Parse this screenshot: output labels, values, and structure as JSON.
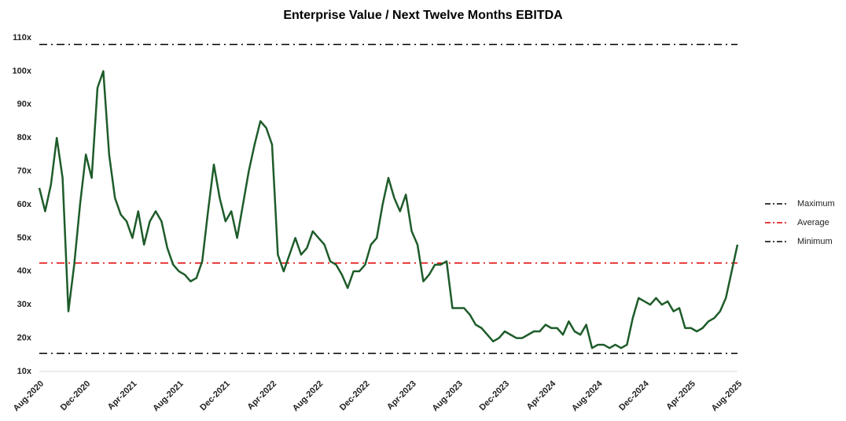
{
  "chart_data": {
    "type": "line",
    "title": "Enterprise Value / Next Twelve Months EBITDA",
    "categories": [
      "Aug-2020",
      null,
      null,
      null,
      null,
      null,
      null,
      null,
      "Dec-2020",
      null,
      null,
      null,
      null,
      null,
      null,
      null,
      "Apr-2021",
      null,
      null,
      null,
      null,
      null,
      null,
      null,
      "Aug-2021",
      null,
      null,
      null,
      null,
      null,
      null,
      null,
      "Dec-2021",
      null,
      null,
      null,
      null,
      null,
      null,
      null,
      "Apr-2022",
      null,
      null,
      null,
      null,
      null,
      null,
      null,
      "Aug-2022",
      null,
      null,
      null,
      null,
      null,
      null,
      null,
      "Dec-2022",
      null,
      null,
      null,
      null,
      null,
      null,
      null,
      "Apr-2023",
      null,
      null,
      null,
      null,
      null,
      null,
      null,
      "Aug-2023",
      null,
      null,
      null,
      null,
      null,
      null,
      null,
      "Dec-2023",
      null,
      null,
      null,
      null,
      null,
      null,
      null,
      "Apr-2024",
      null,
      null,
      null,
      null,
      null,
      null,
      null,
      "Aug-2024",
      null,
      null,
      null,
      null,
      null,
      null,
      null,
      "Dec-2024",
      null,
      null,
      null,
      null,
      null,
      null,
      null,
      "Apr-2025",
      null,
      null,
      null,
      null,
      null,
      null,
      null,
      "Aug-2025"
    ],
    "series": [
      {
        "name": "EV / NTM EBITDA",
        "color": "#1e5c2a",
        "values": [
          65,
          58,
          66,
          80,
          68,
          28,
          42,
          60,
          75,
          68,
          95,
          100,
          75,
          62,
          57,
          55,
          50,
          58,
          48,
          55,
          58,
          55,
          47,
          42,
          40,
          39,
          37,
          38,
          43,
          58,
          72,
          62,
          55,
          58,
          50,
          60,
          70,
          78,
          85,
          83,
          78,
          45,
          40,
          45,
          50,
          45,
          47,
          52,
          50,
          48,
          43,
          42,
          39,
          35,
          40,
          40,
          42,
          48,
          50,
          60,
          68,
          62,
          58,
          63,
          52,
          48,
          37,
          39,
          42,
          42,
          43,
          29,
          29,
          29,
          27,
          24,
          23,
          21,
          19,
          20,
          22,
          21,
          20,
          20,
          21,
          22,
          22,
          24,
          23,
          23,
          21,
          25,
          22,
          21,
          24,
          17,
          18,
          18,
          17,
          18,
          17,
          18,
          26,
          32,
          31,
          30,
          32,
          30,
          31,
          28,
          29,
          23,
          23,
          22,
          23,
          25,
          26,
          28,
          32,
          40,
          48
        ]
      }
    ],
    "reference_lines": [
      {
        "name": "Maximum",
        "value": 108,
        "color": "#000000"
      },
      {
        "name": "Average",
        "value": 42.5,
        "color": "#e00000"
      },
      {
        "name": "Minimum",
        "value": 15.4,
        "color": "#000000"
      }
    ],
    "ylim": [
      10,
      110
    ],
    "yticks": [
      {
        "value": 10,
        "label": "10x"
      },
      {
        "value": 20,
        "label": "20x"
      },
      {
        "value": 30,
        "label": "30x"
      },
      {
        "value": 40,
        "label": "40x"
      },
      {
        "value": 50,
        "label": "50x"
      },
      {
        "value": 60,
        "label": "60x"
      },
      {
        "value": 70,
        "label": "70x"
      },
      {
        "value": 80,
        "label": "80x"
      },
      {
        "value": 90,
        "label": "90x"
      },
      {
        "value": 100,
        "label": "100x"
      },
      {
        "value": 110,
        "label": "110x"
      }
    ],
    "grid": false
  }
}
